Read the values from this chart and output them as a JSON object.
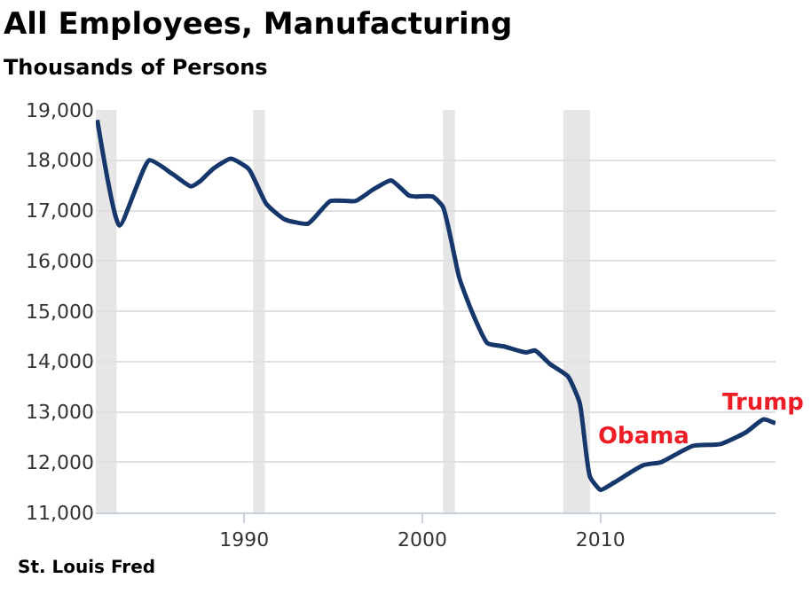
{
  "chart_data": {
    "type": "line",
    "title": "All Employees, Manufacturing",
    "subtitle": "Thousands of Persons",
    "x": [
      "1981-10",
      "1983-01",
      "1984-09",
      "1986-01",
      "1987-01",
      "1987-08",
      "1988-04",
      "1989-04",
      "1990-04",
      "1991-04",
      "1992-04",
      "1993-08",
      "1994-11",
      "1996-04",
      "1997-04",
      "1998-04",
      "1999-04",
      "1999-08",
      "2000-08",
      "2001-03",
      "2002-02",
      "2002-11",
      "2003-09",
      "2004-08",
      "2005-11",
      "2006-05",
      "2007-03",
      "2008-03",
      "2008-11",
      "2009-06",
      "2010-01",
      "2010-10",
      "2012-06",
      "2013-06",
      "2015-03",
      "2016-10",
      "2018-03",
      "2019-03",
      "2019-11"
    ],
    "series": [
      {
        "color": "#16376b",
        "values": [
          18800,
          16700,
          18000,
          17720,
          17480,
          17600,
          17830,
          18030,
          17830,
          17130,
          16830,
          16740,
          17190,
          17190,
          17420,
          17600,
          17300,
          17280,
          17280,
          17070,
          15650,
          14950,
          14360,
          14300,
          14180,
          14220,
          13950,
          13710,
          13180,
          11710,
          11450,
          11590,
          11940,
          12000,
          12320,
          12360,
          12590,
          12850,
          12770
        ]
      }
    ],
    "xlim": [
      "1981-09",
      "2019-11"
    ],
    "xticks": [
      {
        "value": "1990-01",
        "label": "1990"
      },
      {
        "value": "2000-01",
        "label": "2000"
      },
      {
        "value": "2010-01",
        "label": "2010"
      }
    ],
    "ylim": [
      11000,
      19000
    ],
    "yticks": [
      {
        "value": 11000,
        "label": "11,000"
      },
      {
        "value": 12000,
        "label": "12,000"
      },
      {
        "value": 13000,
        "label": "13,000"
      },
      {
        "value": 14000,
        "label": "14,000"
      },
      {
        "value": 15000,
        "label": "15,000"
      },
      {
        "value": 16000,
        "label": "16,000"
      },
      {
        "value": 17000,
        "label": "17,000"
      },
      {
        "value": 18000,
        "label": "18,000"
      },
      {
        "value": 19000,
        "label": "19,000"
      }
    ],
    "bands": [
      {
        "axis": "x",
        "from": "1981-09",
        "to": "1982-11",
        "color": "#e6e6e6"
      },
      {
        "axis": "x",
        "from": "1990-07",
        "to": "1991-03",
        "color": "#e6e6e6"
      },
      {
        "axis": "x",
        "from": "2001-03",
        "to": "2001-11",
        "color": "#e6e6e6"
      },
      {
        "axis": "x",
        "from": "2007-12",
        "to": "2009-06",
        "color": "#e6e6e6"
      }
    ],
    "annotations": [
      "Obama",
      "Trump",
      "St. Louis Fred"
    ],
    "grid": "y",
    "marker": "none",
    "line_style": "solid"
  }
}
